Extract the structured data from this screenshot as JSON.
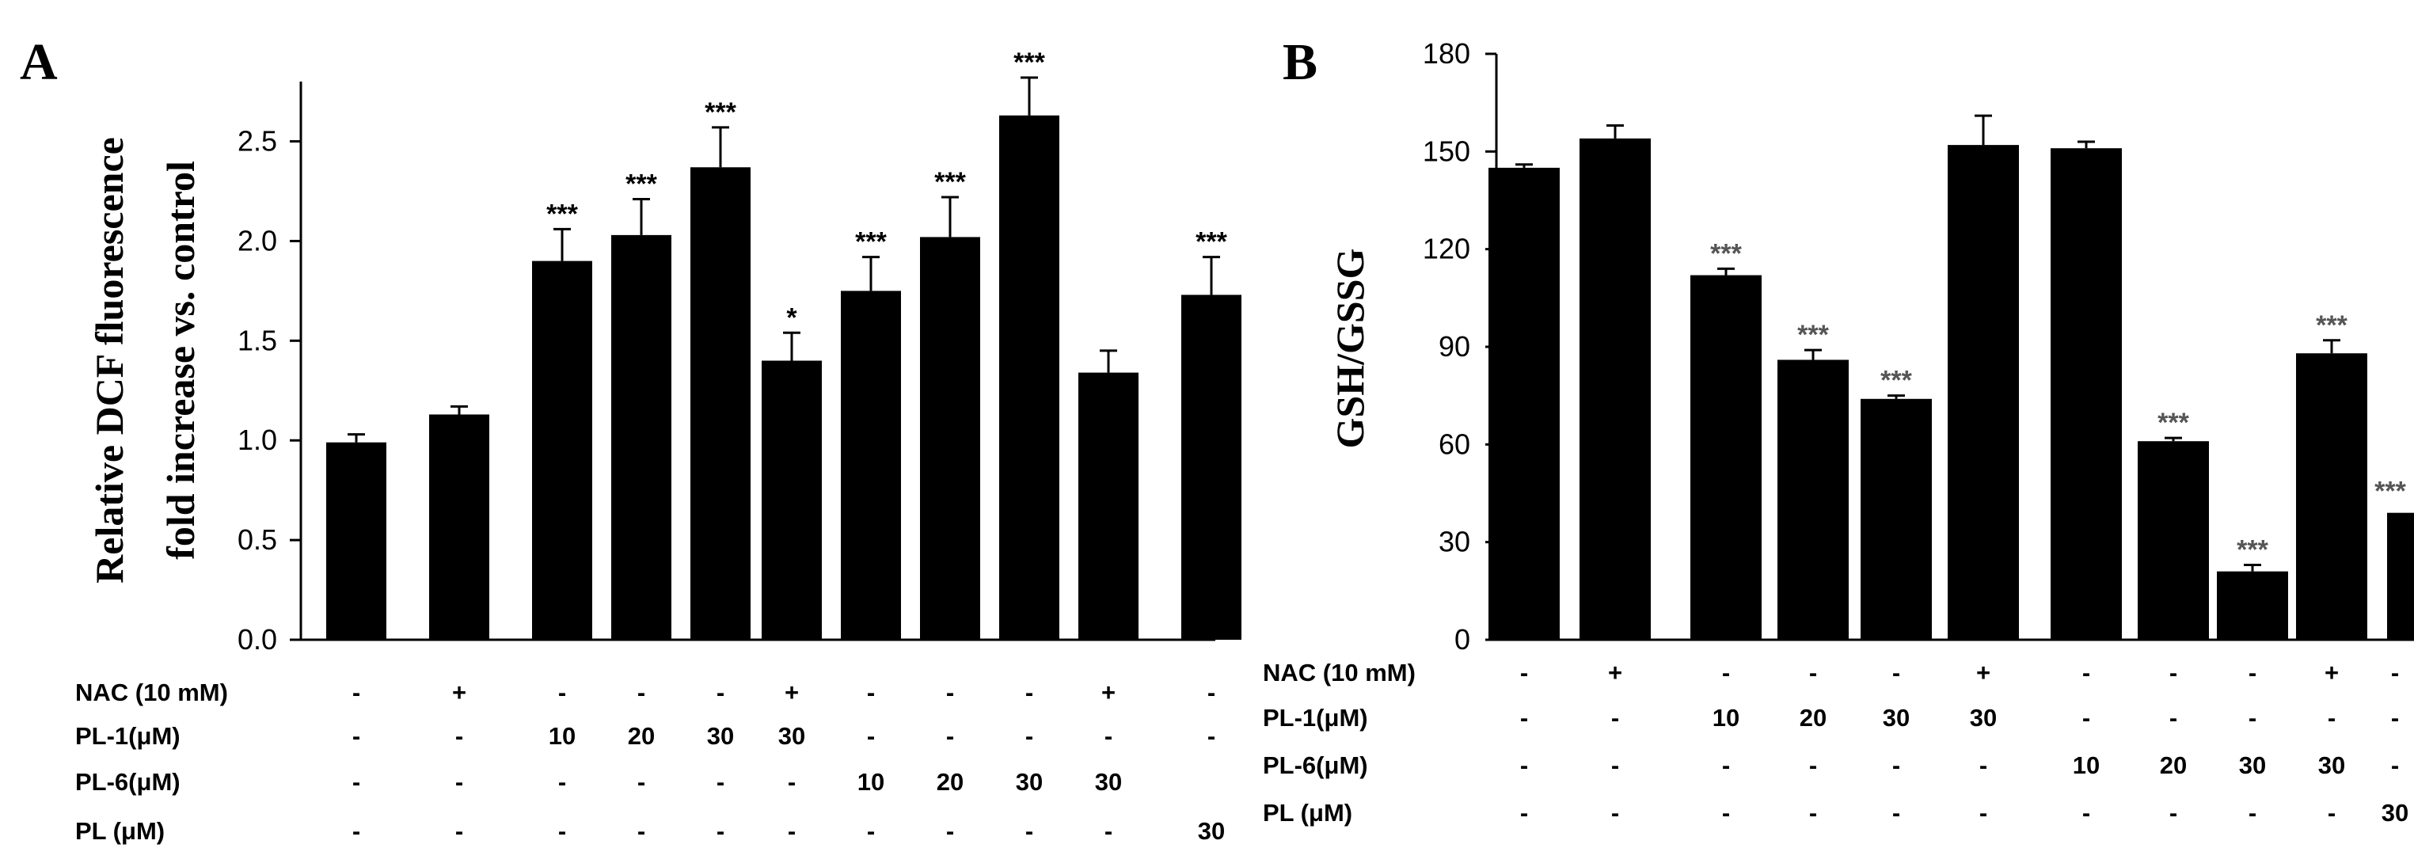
{
  "chart_data": [
    {
      "type": "bar",
      "panel": "A",
      "title": "",
      "xlabel": "",
      "ylabel_lines": [
        "Relative DCF fluorescence",
        "fold increase vs. control"
      ],
      "ylim": [
        0,
        2.8
      ],
      "yticks": [
        "0.0",
        "0.5",
        "1.0",
        "1.5",
        "2.0",
        "2.5"
      ],
      "values": [
        0.99,
        1.13,
        1.9,
        2.03,
        2.37,
        1.4,
        1.75,
        2.02,
        2.63,
        1.34,
        1.73
      ],
      "errors": [
        0.04,
        0.04,
        0.16,
        0.18,
        0.2,
        0.14,
        0.17,
        0.2,
        0.19,
        0.11,
        0.19
      ],
      "significance": [
        "",
        "",
        "***",
        "***",
        "***",
        "*",
        "***",
        "***",
        "***",
        "",
        "***"
      ],
      "conditions": [
        {
          "label": "NAC (10 mM)",
          "cells": [
            "-",
            "+",
            "-",
            "-",
            "-",
            "+",
            "-",
            "-",
            "-",
            "+",
            "-"
          ]
        },
        {
          "label": "PL-1(μM)",
          "cells": [
            "-",
            "-",
            "10",
            "20",
            "30",
            "30",
            "-",
            "-",
            "-",
            "-",
            "-"
          ]
        },
        {
          "label": "PL-6(μM)",
          "cells": [
            "-",
            "-",
            "-",
            "-",
            "-",
            "-",
            "10",
            "20",
            "30",
            "30",
            ""
          ]
        },
        {
          "label": "PL (μM)",
          "cells": [
            "-",
            "-",
            "-",
            "-",
            "-",
            "-",
            "-",
            "-",
            "-",
            "-",
            "30"
          ]
        }
      ]
    },
    {
      "type": "bar",
      "panel": "B",
      "title": "",
      "xlabel": "",
      "ylabel": "GSH/GSSG",
      "ylim": [
        0,
        180
      ],
      "yticks": [
        "0",
        "30",
        "60",
        "90",
        "120",
        "150",
        "180"
      ],
      "values": [
        145,
        154,
        112,
        86,
        74,
        152,
        151,
        61,
        21,
        88,
        39
      ],
      "errors": [
        1,
        4,
        2,
        3,
        1,
        9,
        2,
        1,
        2,
        4,
        2
      ],
      "significance": [
        "",
        "",
        "***",
        "***",
        "***",
        "",
        "",
        "***",
        "***",
        "***",
        "***"
      ],
      "conditions": [
        {
          "label": "NAC (10 mM)",
          "cells": [
            "-",
            "+",
            "-",
            "-",
            "-",
            "+",
            "-",
            "-",
            "-",
            "+",
            "-"
          ]
        },
        {
          "label": "PL-1(μM)",
          "cells": [
            "-",
            "-",
            "10",
            "20",
            "30",
            "30",
            "-",
            "-",
            "-",
            "-",
            "-"
          ]
        },
        {
          "label": "PL-6(μM)",
          "cells": [
            "-",
            "-",
            "-",
            "-",
            "-",
            "-",
            "10",
            "20",
            "30",
            "30",
            "-"
          ]
        },
        {
          "label": "PL (μM)",
          "cells": [
            "-",
            "-",
            "-",
            "-",
            "-",
            "-",
            "-",
            "-",
            "-",
            "-",
            "30"
          ]
        }
      ]
    }
  ]
}
